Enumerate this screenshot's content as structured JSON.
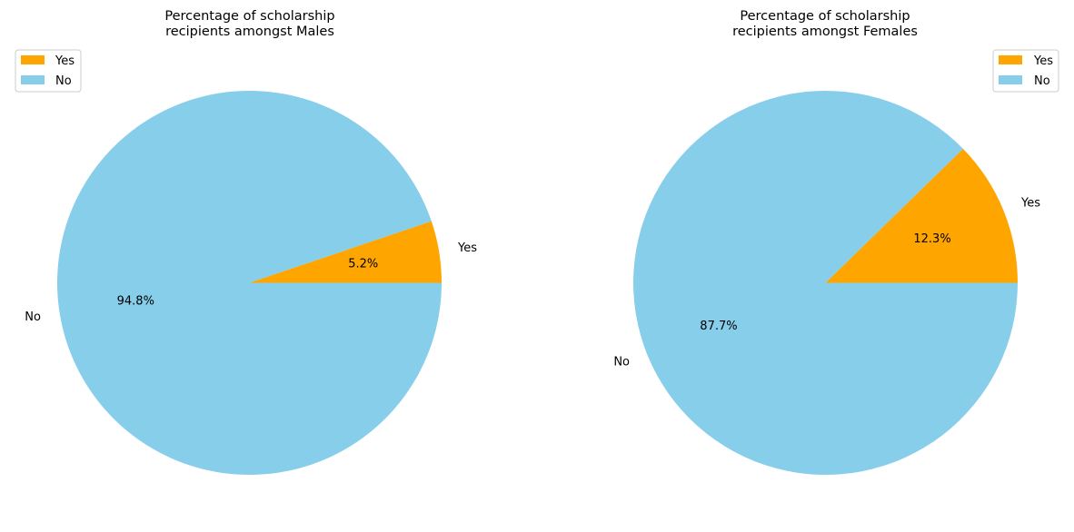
{
  "chart_data": [
    {
      "type": "pie",
      "title_lines": [
        "Percentage of scholarship",
        "recipients amongst Males"
      ],
      "slices": [
        {
          "label": "Yes",
          "value": 5.2,
          "pct_label": "5.2%",
          "color": "#FFA500"
        },
        {
          "label": "No",
          "value": 94.8,
          "pct_label": "94.8%",
          "color": "#87CEEB"
        }
      ],
      "legend": {
        "placement": "upper left",
        "entries": [
          {
            "label": "Yes",
            "color": "#FFA500"
          },
          {
            "label": "No",
            "color": "#87CEEB"
          }
        ]
      }
    },
    {
      "type": "pie",
      "title_lines": [
        "Percentage of scholarship",
        "recipients amongst Females"
      ],
      "slices": [
        {
          "label": "Yes",
          "value": 12.3,
          "pct_label": "12.3%",
          "color": "#FFA500"
        },
        {
          "label": "No",
          "value": 87.7,
          "pct_label": "87.7%",
          "color": "#87CEEB"
        }
      ],
      "legend": {
        "placement": "upper right",
        "entries": [
          {
            "label": "Yes",
            "color": "#FFA500"
          },
          {
            "label": "No",
            "color": "#87CEEB"
          }
        ]
      }
    }
  ]
}
